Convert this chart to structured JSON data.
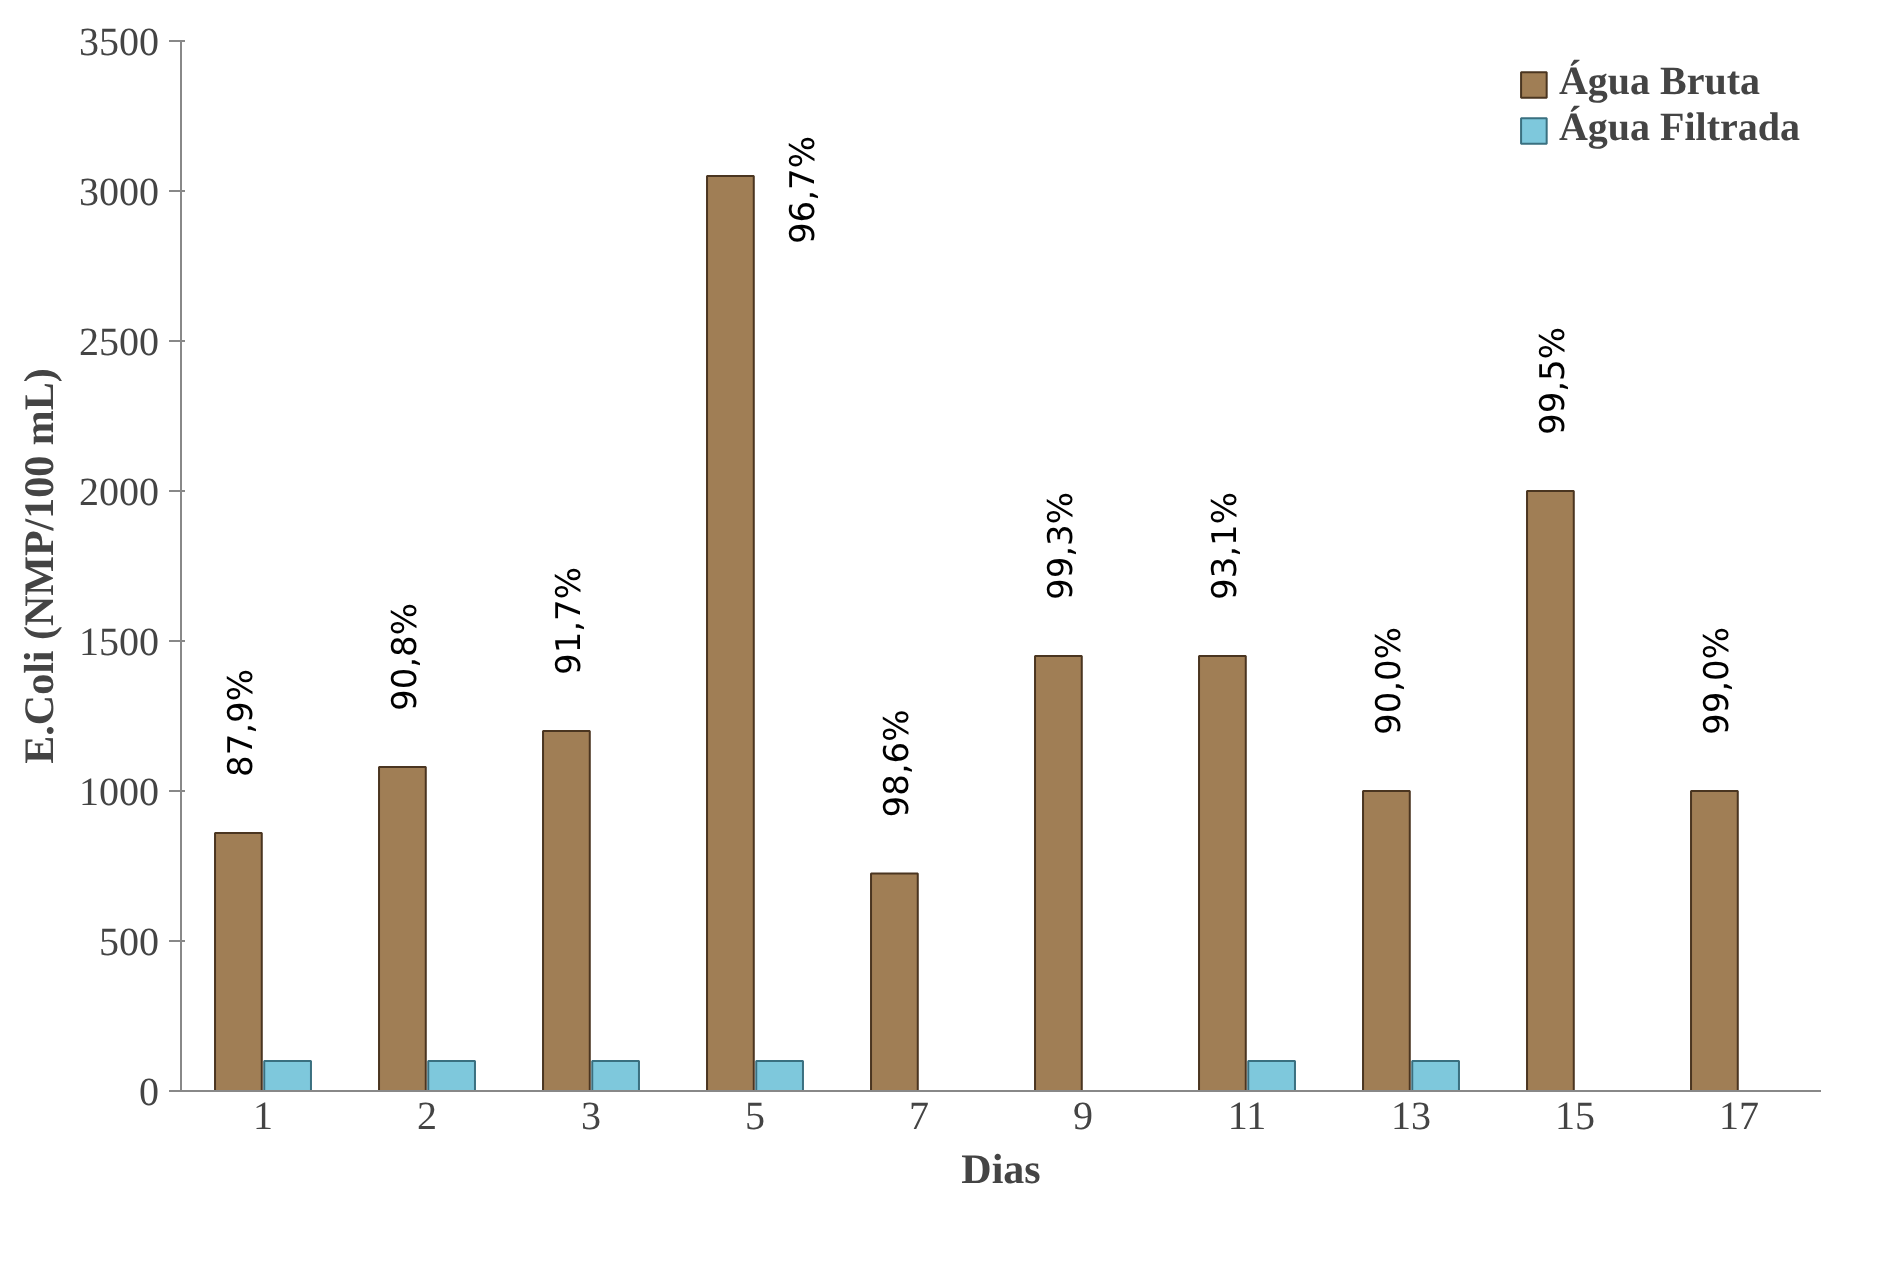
{
  "chart_data": {
    "type": "bar",
    "xlabel": "Dias",
    "ylabel": "E.Coli (NMP/100 mL)",
    "categories": [
      "1",
      "2",
      "3",
      "5",
      "7",
      "9",
      "11",
      "13",
      "15",
      "17"
    ],
    "series": [
      {
        "name": "Água Bruta",
        "color": "#a07e55",
        "values": [
          860,
          1080,
          1200,
          3050,
          725,
          1450,
          1450,
          1000,
          2000,
          1000
        ]
      },
      {
        "name": "Água Filtrada",
        "color": "#7ec8dc",
        "values": [
          100,
          100,
          100,
          100,
          null,
          null,
          100,
          100,
          null,
          null
        ]
      }
    ],
    "ylim": [
      0,
      3500
    ],
    "yticks": [
      0,
      500,
      1000,
      1500,
      2000,
      2500,
      3000,
      3500
    ],
    "grid": false,
    "legend": "top right",
    "annotations": [
      {
        "text": "87,9%",
        "x": "1",
        "y": 860
      },
      {
        "text": "90,8%",
        "x": "2",
        "y": 1080
      },
      {
        "text": "91,7%",
        "x": "3",
        "y": 1200
      },
      {
        "text": "96,7%",
        "x": "5",
        "y": 3050
      },
      {
        "text": "98,6%",
        "x": "7",
        "y": 725
      },
      {
        "text": "99,3%",
        "x": "9",
        "y": 1450
      },
      {
        "text": "93,1%",
        "x": "11",
        "y": 1450
      },
      {
        "text": "90,0%",
        "x": "13",
        "y": 1000
      },
      {
        "text": "99,5%",
        "x": "15",
        "y": 2000
      },
      {
        "text": "99,0%",
        "x": "17",
        "y": 1000
      }
    ]
  }
}
